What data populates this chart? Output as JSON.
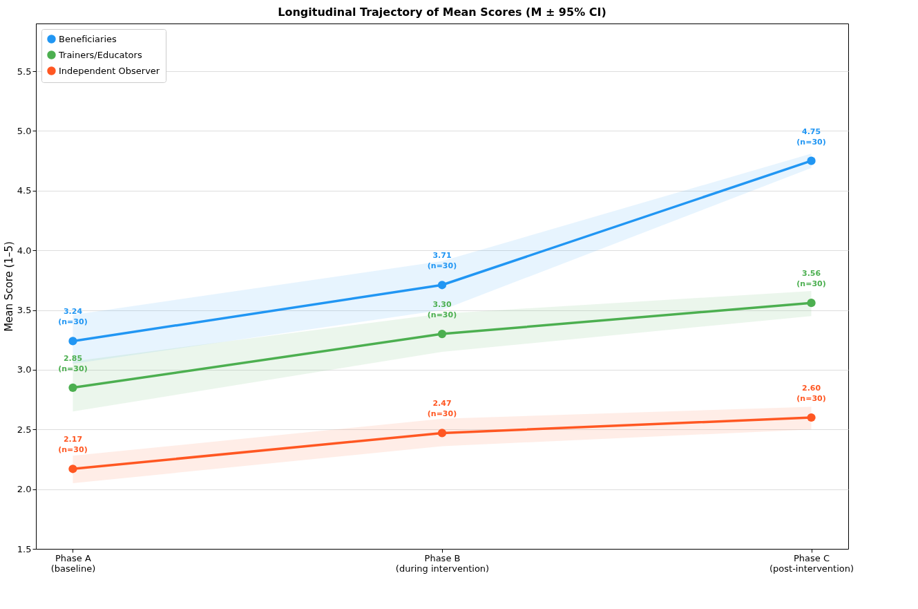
{
  "chart_data": {
    "type": "line",
    "title": "Longitudinal Trajectory of Mean Scores (M ± 95% CI)",
    "ylabel": "Mean Score (1–5)",
    "categories": [
      "Phase A\n(baseline)",
      "Phase B\n(during intervention)",
      "Phase C\n(post-intervention)"
    ],
    "ylim": [
      1.5,
      5.9
    ],
    "yticks": [
      1.5,
      {
        "value": 2,
        "label": "2.0"
      },
      2.5,
      {
        "value": 3,
        "label": "3.0"
      },
      3.5,
      {
        "value": 4,
        "label": "4.0"
      },
      4.5,
      {
        "value": 5,
        "label": "5.0"
      },
      5.5
    ],
    "grid": "y",
    "legend": "top left",
    "marker": "circle",
    "line_style": "solid",
    "series": [
      {
        "name": "Beneficiaries",
        "color": "#2196f3",
        "values": [
          3.24,
          3.71,
          4.75
        ],
        "lower": [
          3.05,
          3.5,
          4.69
        ],
        "upper": [
          3.46,
          3.91,
          4.81
        ],
        "value_labels": [
          "3.24\n(n=30)",
          "3.71\n(n=30)",
          "4.75\n(n=30)"
        ]
      },
      {
        "name": "Trainers/Educators",
        "color": "#4caf50",
        "values": [
          2.85,
          3.3,
          3.56
        ],
        "lower": [
          2.65,
          3.15,
          3.45
        ],
        "upper": [
          3.07,
          3.47,
          3.66
        ],
        "value_labels": [
          "2.85\n(n=30)",
          "3.30\n(n=30)",
          "3.56\n(n=30)"
        ]
      },
      {
        "name": "Independent Observer",
        "color": "#ff5722",
        "values": [
          2.17,
          2.47,
          2.6
        ],
        "lower": [
          2.05,
          2.36,
          2.5
        ],
        "upper": [
          2.28,
          2.59,
          2.69
        ],
        "value_labels": [
          "2.17\n(n=30)",
          "2.47\n(n=30)",
          "2.60\n(n=30)"
        ]
      }
    ]
  }
}
